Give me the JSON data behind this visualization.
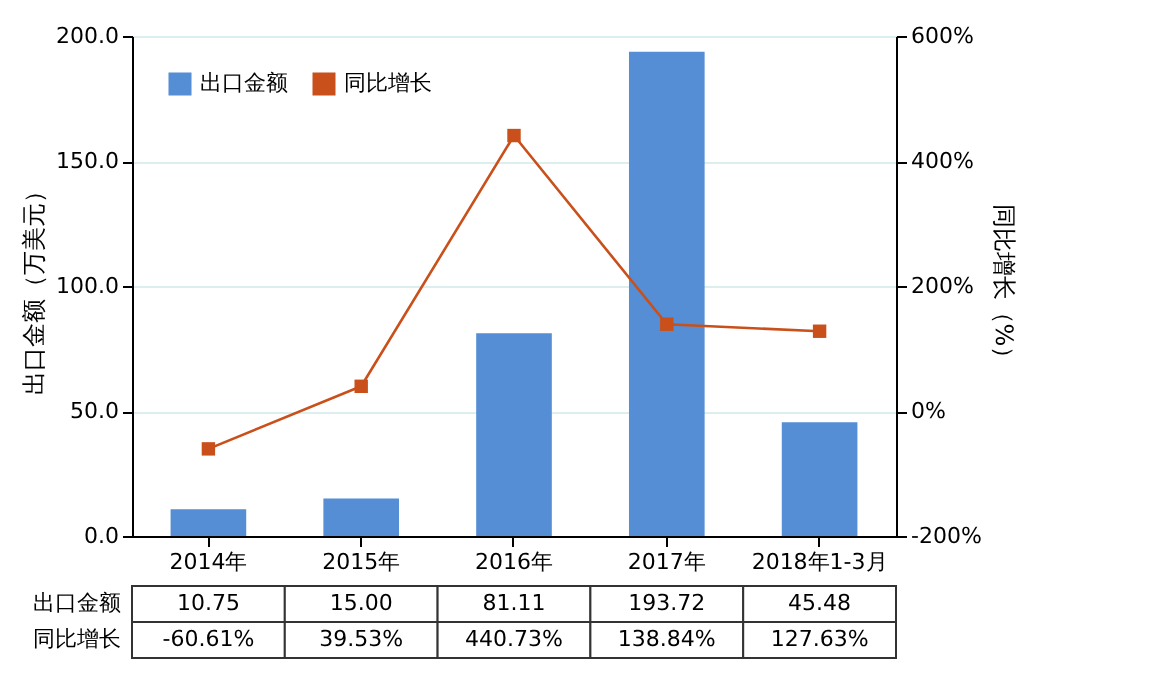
{
  "chart_data": {
    "type": "bar",
    "categories": [
      "2014年",
      "2015年",
      "2016年",
      "2017年",
      "2018年1-3月"
    ],
    "ylabel": "出口金额（万美元）",
    "y2label": "同比增长（%）",
    "ylim": [
      0,
      200
    ],
    "yticks": [
      {
        "value": 0,
        "label": "0.0"
      },
      {
        "value": 50,
        "label": "50.0"
      },
      {
        "value": 100,
        "label": "100.0"
      },
      {
        "value": 150,
        "label": "150.0"
      },
      {
        "value": 200,
        "label": "200.0"
      }
    ],
    "y2lim": [
      -200,
      600
    ],
    "y2ticks": [
      {
        "value": -200,
        "label": "-200%"
      },
      {
        "value": 0,
        "label": "0%"
      },
      {
        "value": 200,
        "label": "200%"
      },
      {
        "value": 400,
        "label": "400%"
      },
      {
        "value": 600,
        "label": "600%"
      }
    ],
    "series": [
      {
        "name": "出口金额",
        "color": "#558ed5",
        "values": [
          10.75,
          15.0,
          81.11,
          193.72,
          45.48
        ],
        "value_labels": [
          "10.75",
          "15.00",
          "81.11",
          "193.72",
          "45.48"
        ]
      },
      {
        "name": "同比增长",
        "type": "line",
        "axis": "y2",
        "color": "#c9501a",
        "values": [
          -60.61,
          39.53,
          440.73,
          138.84,
          127.63
        ],
        "value_labels": [
          "-60.61%",
          "39.53%",
          "440.73%",
          "138.84%",
          "127.63%"
        ]
      }
    ],
    "grid": "y",
    "legend": "top left",
    "marker": "square",
    "line_style": "solid"
  }
}
